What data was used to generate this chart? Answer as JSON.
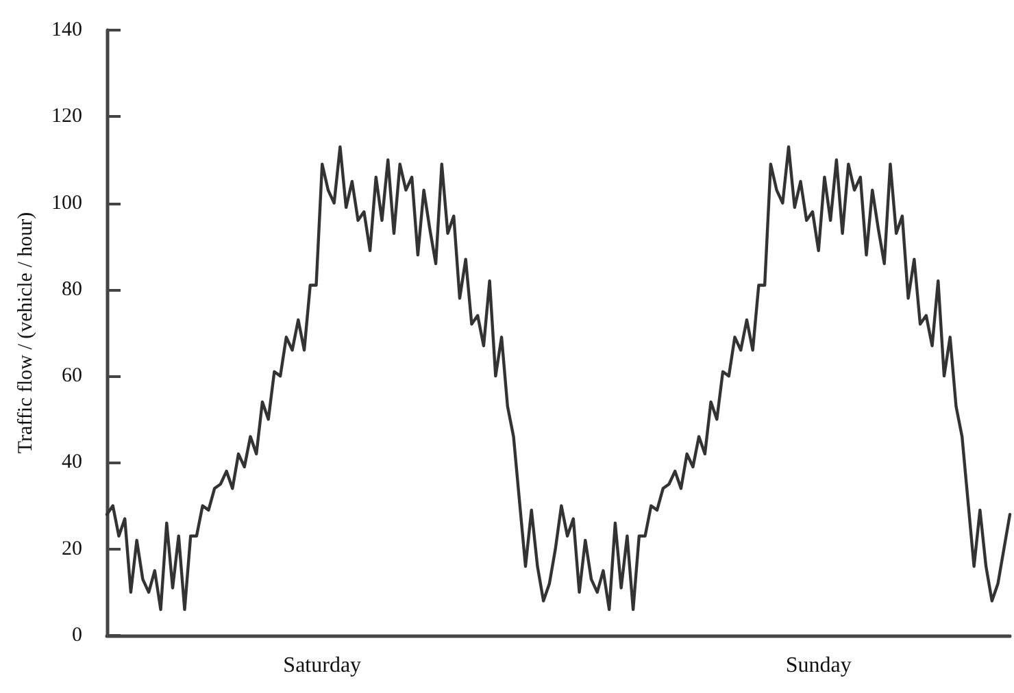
{
  "chart_data": {
    "type": "line",
    "ylabel": "Traffic flow / (vehicle / hour)",
    "categories": [
      null,
      null,
      null,
      null,
      null,
      null,
      null,
      null,
      null,
      null,
      null,
      null,
      null,
      null,
      null,
      null,
      null,
      null,
      null,
      null,
      null,
      null,
      null,
      null,
      null,
      null,
      null,
      null,
      null,
      null,
      null,
      null,
      null,
      null,
      null,
      null,
      "Saturday",
      null,
      null,
      null,
      null,
      null,
      null,
      null,
      null,
      null,
      null,
      null,
      null,
      null,
      null,
      null,
      null,
      null,
      null,
      null,
      null,
      null,
      null,
      null,
      null,
      null,
      null,
      null,
      null,
      null,
      null,
      null,
      null,
      null,
      null,
      null,
      null,
      null,
      null,
      null,
      null,
      null,
      null,
      null,
      null,
      null,
      null,
      null,
      null,
      null,
      null,
      null,
      null,
      null,
      null,
      null,
      null,
      null,
      null,
      null,
      null,
      null,
      null,
      null,
      null,
      null,
      null,
      null,
      null,
      null,
      null,
      null,
      null,
      null,
      null,
      null,
      null,
      null,
      null,
      null,
      null,
      null,
      null,
      "Sunday",
      null,
      null,
      null,
      null,
      null,
      null,
      null,
      null,
      null,
      null,
      null,
      null,
      null,
      null,
      null,
      null,
      null,
      null,
      null,
      null,
      null,
      null,
      null,
      null,
      null,
      null,
      null,
      null,
      null,
      null,
      null,
      null
    ],
    "ylim": [
      0,
      140
    ],
    "yticks": [
      0,
      20,
      40,
      60,
      80,
      100,
      120,
      140
    ],
    "grid": false,
    "marker": "none",
    "line_style": "solid",
    "series": [
      {
        "color": "#333333",
        "values": [
          28,
          30,
          23,
          27,
          10,
          22,
          13,
          10,
          15,
          6,
          26,
          11,
          23,
          6,
          23,
          23,
          30,
          29,
          34,
          35,
          38,
          34,
          42,
          39,
          46,
          42,
          54,
          50,
          61,
          60,
          69,
          66,
          73,
          66,
          81,
          81,
          109,
          103,
          100,
          113,
          99,
          105,
          96,
          98,
          89,
          106,
          96,
          110,
          93,
          109,
          103,
          106,
          88,
          103,
          94,
          86,
          109,
          93,
          97,
          78,
          87,
          72,
          74,
          67,
          82,
          60,
          69,
          53,
          46,
          31,
          16,
          29,
          16,
          8,
          12,
          20,
          30,
          23,
          27,
          10,
          22,
          13,
          10,
          15,
          6,
          26,
          11,
          23,
          6,
          23,
          23,
          30,
          29,
          34,
          35,
          38,
          34,
          42,
          39,
          46,
          42,
          54,
          50,
          61,
          60,
          69,
          66,
          73,
          66,
          81,
          81,
          109,
          103,
          100,
          113,
          99,
          105,
          96,
          98,
          89,
          106,
          96,
          110,
          93,
          109,
          103,
          106,
          88,
          103,
          94,
          86,
          109,
          93,
          97,
          78,
          87,
          72,
          74,
          67,
          82,
          60,
          69,
          53,
          46,
          31,
          16,
          29,
          16,
          8,
          12,
          20,
          28
        ]
      }
    ]
  }
}
